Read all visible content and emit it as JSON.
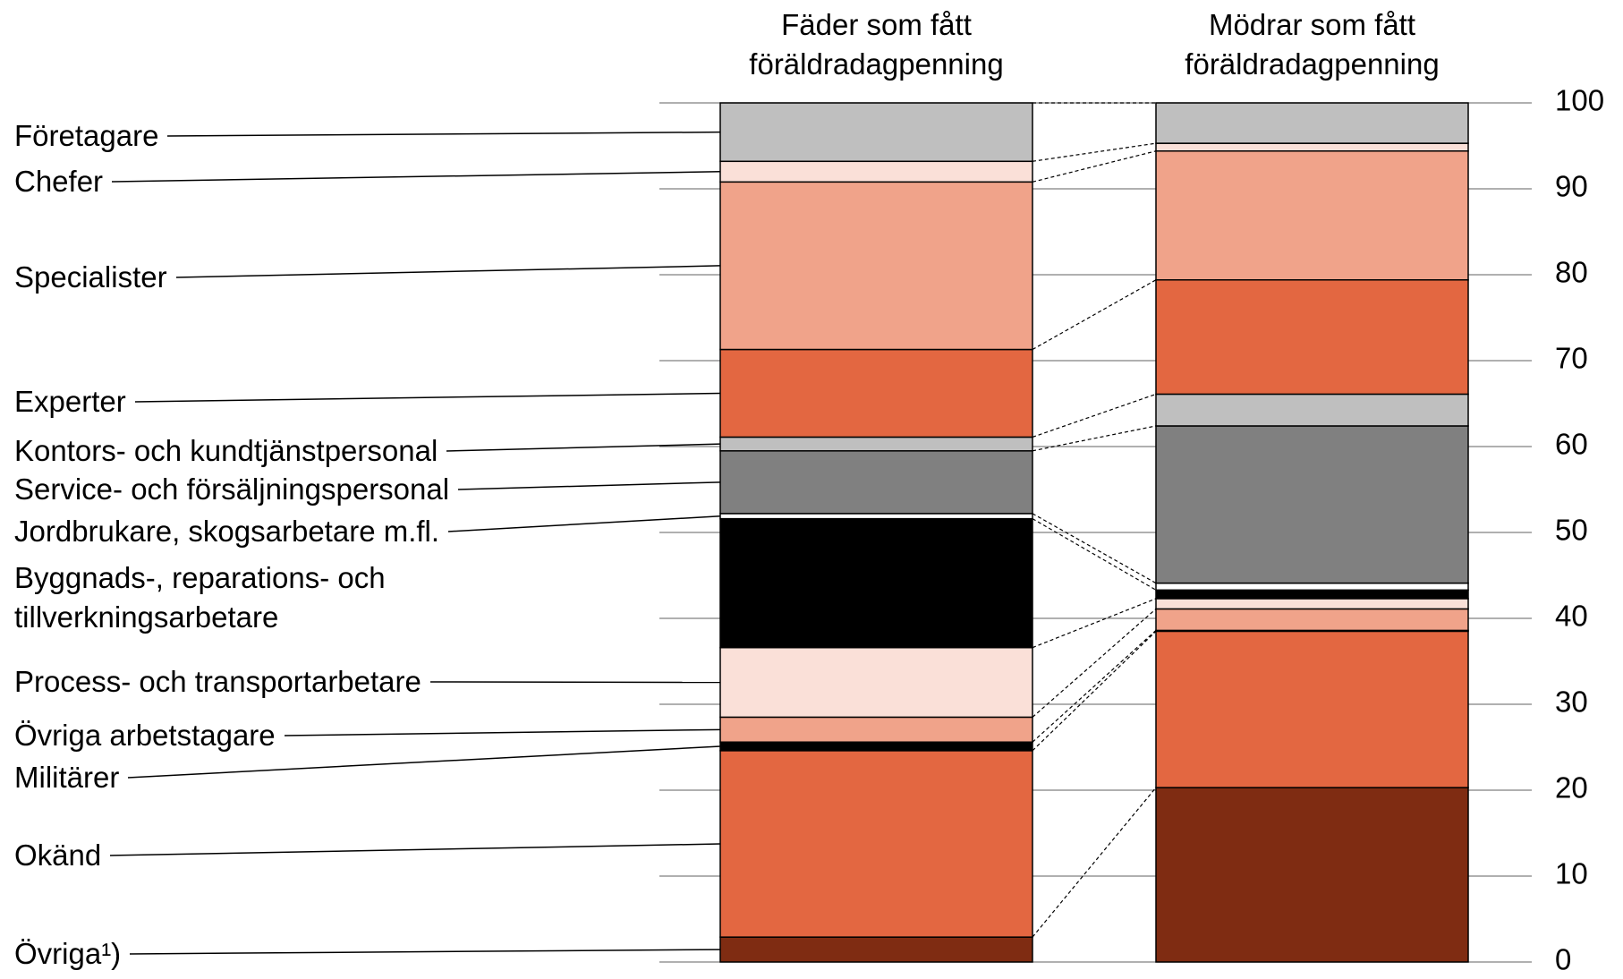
{
  "chart_data": {
    "type": "stacked-bar",
    "categories": [
      "Fäder som fått föräldradagpenning",
      "Mödrar som fått föräldradagpenning"
    ],
    "series": [
      {
        "name": "Övriga¹)",
        "color": "#7f2c12",
        "values": [
          2.9,
          20.3
        ]
      },
      {
        "name": "Okänd",
        "color": "#e36741",
        "values": [
          21.7,
          18.2
        ]
      },
      {
        "name": "Militärer",
        "color": "#000000",
        "values": [
          1.0,
          0.1
        ]
      },
      {
        "name": "Övriga arbetstagare",
        "color": "#f0a38a",
        "values": [
          2.9,
          2.5
        ]
      },
      {
        "name": "Process- och transportarbetare",
        "color": "#fae0d8",
        "values": [
          8.1,
          1.2
        ]
      },
      {
        "name": "Byggnads-, reparations- och tillverkningsarbetare",
        "color": "#000000",
        "values": [
          15.0,
          1.0
        ]
      },
      {
        "name": "Jordbrukare, skogsarbetare m.fl.",
        "color": "#ffffff",
        "values": [
          0.6,
          0.8
        ]
      },
      {
        "name": "Service- och försäljningspersonal",
        "color": "#808080",
        "values": [
          7.3,
          18.3
        ]
      },
      {
        "name": "Kontors- och kundtjänstpersonal",
        "color": "#bfbfbf",
        "values": [
          1.6,
          3.7
        ]
      },
      {
        "name": "Experter",
        "color": "#e36741",
        "values": [
          10.2,
          13.3
        ]
      },
      {
        "name": "Specialister",
        "color": "#f0a38a",
        "values": [
          19.5,
          15.0
        ]
      },
      {
        "name": "Chefer",
        "color": "#fae0d8",
        "values": [
          2.4,
          0.9
        ]
      },
      {
        "name": "Företagare",
        "color": "#bfbfbf",
        "values": [
          6.8,
          4.7
        ]
      }
    ],
    "ylim": [
      0,
      100
    ],
    "yticks": [
      0,
      10,
      20,
      30,
      40,
      50,
      60,
      70,
      80,
      90,
      100
    ],
    "grid": true
  }
}
